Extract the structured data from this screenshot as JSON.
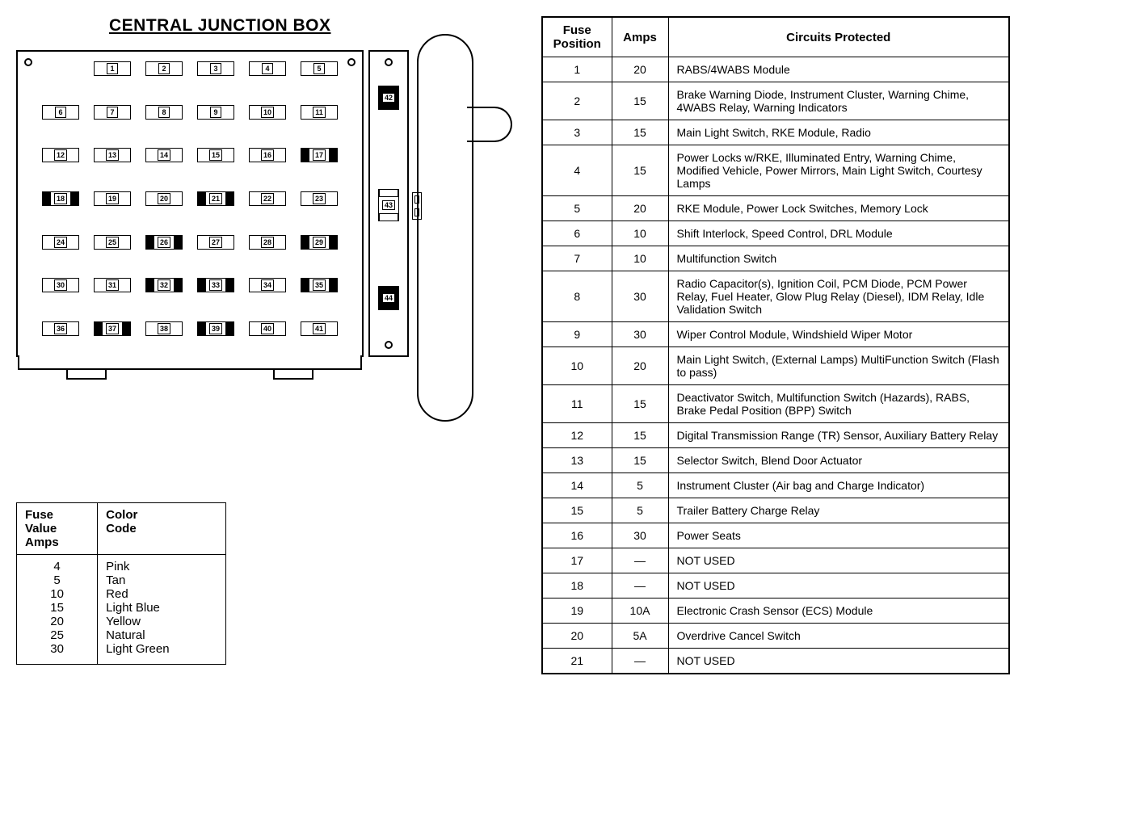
{
  "title": "CENTRAL JUNCTION BOX",
  "fuse_rows": [
    {
      "offset": true,
      "cells": [
        {
          "n": "1"
        },
        {
          "n": "2"
        },
        {
          "n": "3"
        },
        {
          "n": "4"
        },
        {
          "n": "5"
        }
      ]
    },
    {
      "offset": false,
      "cells": [
        {
          "n": "6"
        },
        {
          "n": "7"
        },
        {
          "n": "8"
        },
        {
          "n": "9"
        },
        {
          "n": "10"
        },
        {
          "n": "11"
        }
      ]
    },
    {
      "offset": false,
      "cells": [
        {
          "n": "12"
        },
        {
          "n": "13"
        },
        {
          "n": "14"
        },
        {
          "n": "15"
        },
        {
          "n": "16"
        },
        {
          "n": "17",
          "dark": true
        }
      ]
    },
    {
      "offset": false,
      "cells": [
        {
          "n": "18",
          "dark": true
        },
        {
          "n": "19"
        },
        {
          "n": "20"
        },
        {
          "n": "21",
          "dark": true
        },
        {
          "n": "22"
        },
        {
          "n": "23"
        }
      ]
    },
    {
      "offset": false,
      "cells": [
        {
          "n": "24"
        },
        {
          "n": "25"
        },
        {
          "n": "26",
          "dark": true
        },
        {
          "n": "27"
        },
        {
          "n": "28"
        },
        {
          "n": "29",
          "dark": true
        }
      ]
    },
    {
      "offset": false,
      "cells": [
        {
          "n": "30"
        },
        {
          "n": "31"
        },
        {
          "n": "32",
          "dark": true
        },
        {
          "n": "33",
          "dark": true
        },
        {
          "n": "34"
        },
        {
          "n": "35",
          "dark": true
        }
      ]
    },
    {
      "offset": false,
      "cells": [
        {
          "n": "36"
        },
        {
          "n": "37",
          "dark": true
        },
        {
          "n": "38"
        },
        {
          "n": "39",
          "dark": true
        },
        {
          "n": "40"
        },
        {
          "n": "41"
        }
      ]
    }
  ],
  "relays": {
    "r42": "42",
    "r43": "43",
    "r44": "44"
  },
  "color_code": {
    "headers": {
      "amps": "Fuse\nValue\nAmps",
      "color": "Color\nCode"
    },
    "rows": [
      {
        "amps": "4",
        "color": "Pink"
      },
      {
        "amps": "5",
        "color": "Tan"
      },
      {
        "amps": "10",
        "color": "Red"
      },
      {
        "amps": "15",
        "color": "Light Blue"
      },
      {
        "amps": "20",
        "color": "Yellow"
      },
      {
        "amps": "25",
        "color": "Natural"
      },
      {
        "amps": "30",
        "color": "Light Green"
      }
    ]
  },
  "circuits": {
    "headers": {
      "pos": "Fuse\nPosition",
      "amps": "Amps",
      "desc": "Circuits Protected"
    },
    "rows": [
      {
        "pos": "1",
        "amps": "20",
        "desc": "RABS/4WABS  Module"
      },
      {
        "pos": "2",
        "amps": "15",
        "desc": "Brake Warning Diode, Instrument Cluster, Warning Chime, 4WABS Relay, Warning Indicators"
      },
      {
        "pos": "3",
        "amps": "15",
        "desc": "Main Light Switch, RKE Module, Radio"
      },
      {
        "pos": "4",
        "amps": "15",
        "desc": "Power Locks w/RKE, Illuminated Entry, Warning Chime, Modified Vehicle, Power Mirrors, Main Light Switch, Courtesy Lamps"
      },
      {
        "pos": "5",
        "amps": "20",
        "desc": "RKE Module, Power Lock Switches, Memory Lock"
      },
      {
        "pos": "6",
        "amps": "10",
        "desc": "Shift Interlock, Speed Control, DRL Module"
      },
      {
        "pos": "7",
        "amps": "10",
        "desc": "Multifunction Switch"
      },
      {
        "pos": "8",
        "amps": "30",
        "desc": "Radio Capacitor(s), Ignition Coil, PCM Diode, PCM Power Relay,  Fuel Heater, Glow Plug Relay (Diesel), IDM Relay, Idle Validation Switch"
      },
      {
        "pos": "9",
        "amps": "30",
        "desc": "Wiper Control Module, Windshield Wiper Motor"
      },
      {
        "pos": "10",
        "amps": "20",
        "desc": "Main Light Switch,  (External Lamps) MultiFunction Switch (Flash to pass)"
      },
      {
        "pos": "11",
        "amps": "15",
        "desc": "Deactivator Switch, Multifunction Switch (Hazards), RABS, Brake Pedal Position (BPP) Switch"
      },
      {
        "pos": "12",
        "amps": "15",
        "desc": "Digital Transmission Range (TR) Sensor, Auxiliary Battery Relay"
      },
      {
        "pos": "13",
        "amps": "15",
        "desc": "Selector Switch, Blend Door Actuator"
      },
      {
        "pos": "14",
        "amps": "5",
        "desc": "Instrument Cluster (Air bag and Charge Indicator)"
      },
      {
        "pos": "15",
        "amps": "5",
        "desc": "Trailer Battery Charge Relay"
      },
      {
        "pos": "16",
        "amps": "30",
        "desc": "Power  Seats"
      },
      {
        "pos": "17",
        "amps": "—",
        "desc": "NOT USED"
      },
      {
        "pos": "18",
        "amps": "—",
        "desc": "NOT USED"
      },
      {
        "pos": "19",
        "amps": "10A",
        "desc": "Electronic Crash Sensor (ECS) Module"
      },
      {
        "pos": "20",
        "amps": "5A",
        "desc": "Overdrive Cancel Switch"
      },
      {
        "pos": "21",
        "amps": "—",
        "desc": "NOT USED"
      }
    ]
  }
}
